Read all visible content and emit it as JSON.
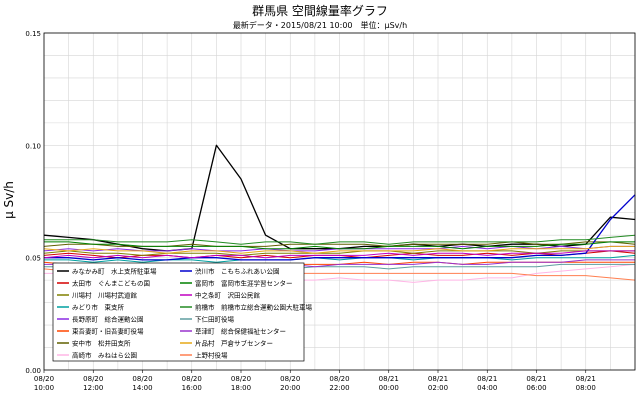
{
  "chart_data": {
    "type": "line",
    "title": "群馬県 空間線量率グラフ",
    "subtitle": "最新データ・2015/08/21 10:00　単位：μSv/h",
    "ylabel": "μ Sv/h",
    "ylim": [
      0.0,
      0.15
    ],
    "yticks": [
      "0.00",
      "0.05",
      "0.10",
      "0.15"
    ],
    "grid": true,
    "legend_position": "lower-left",
    "x_ticks": [
      [
        "08/20",
        "10:00"
      ],
      [
        "08/20",
        "12:00"
      ],
      [
        "08/20",
        "14:00"
      ],
      [
        "08/20",
        "16:00"
      ],
      [
        "08/20",
        "18:00"
      ],
      [
        "08/20",
        "20:00"
      ],
      [
        "08/20",
        "22:00"
      ],
      [
        "08/21",
        "00:00"
      ],
      [
        "08/21",
        "02:00"
      ],
      [
        "08/21",
        "04:00"
      ],
      [
        "08/21",
        "06:00"
      ],
      [
        "08/21",
        "08:00"
      ]
    ],
    "x": [
      "08/20 10:00",
      "08/20 11:00",
      "08/20 12:00",
      "08/20 13:00",
      "08/20 14:00",
      "08/20 15:00",
      "08/20 16:00",
      "08/20 17:00",
      "08/20 18:00",
      "08/20 19:00",
      "08/20 20:00",
      "08/20 21:00",
      "08/20 22:00",
      "08/20 23:00",
      "08/21 00:00",
      "08/21 01:00",
      "08/21 02:00",
      "08/21 03:00",
      "08/21 04:00",
      "08/21 05:00",
      "08/21 06:00",
      "08/21 07:00",
      "08/21 08:00",
      "08/21 09:00",
      "08/21 10:00"
    ],
    "series": [
      {
        "name": "みなかみ町　水上支所駐車場",
        "color": "#000000",
        "values": [
          0.06,
          0.059,
          0.058,
          0.056,
          0.054,
          0.053,
          0.054,
          0.1,
          0.085,
          0.06,
          0.054,
          0.054,
          0.054,
          0.055,
          0.055,
          0.056,
          0.055,
          0.056,
          0.055,
          0.056,
          0.056,
          0.055,
          0.056,
          0.068,
          0.067
        ]
      },
      {
        "name": "太田市　ぐんまこどもの国",
        "color": "#d40000",
        "values": [
          0.051,
          0.052,
          0.051,
          0.05,
          0.051,
          0.051,
          0.05,
          0.051,
          0.05,
          0.051,
          0.05,
          0.051,
          0.051,
          0.05,
          0.051,
          0.052,
          0.051,
          0.051,
          0.052,
          0.051,
          0.052,
          0.051,
          0.052,
          0.053,
          0.052
        ]
      },
      {
        "name": "川場村　川場村武道館",
        "color": "#808000",
        "values": [
          0.052,
          0.053,
          0.052,
          0.052,
          0.051,
          0.052,
          0.052,
          0.052,
          0.051,
          0.052,
          0.052,
          0.052,
          0.052,
          0.053,
          0.053,
          0.052,
          0.053,
          0.053,
          0.053,
          0.053,
          0.052,
          0.053,
          0.053,
          0.053,
          0.053
        ]
      },
      {
        "name": "みどり市　東支所",
        "color": "#00a0a0",
        "values": [
          0.049,
          0.049,
          0.048,
          0.049,
          0.048,
          0.049,
          0.049,
          0.048,
          0.049,
          0.049,
          0.049,
          0.05,
          0.049,
          0.05,
          0.05,
          0.049,
          0.05,
          0.05,
          0.05,
          0.049,
          0.05,
          0.05,
          0.05,
          0.05,
          0.051
        ]
      },
      {
        "name": "長野原町　総合運動公園",
        "color": "#8a2be2",
        "values": [
          0.053,
          0.054,
          0.053,
          0.054,
          0.053,
          0.053,
          0.054,
          0.053,
          0.053,
          0.054,
          0.053,
          0.053,
          0.054,
          0.054,
          0.054,
          0.054,
          0.054,
          0.055,
          0.054,
          0.055,
          0.054,
          0.055,
          0.054,
          0.055,
          0.055
        ]
      },
      {
        "name": "東吾妻町・旧吾妻町役場",
        "color": "#ff4500",
        "values": [
          0.048,
          0.047,
          0.047,
          0.047,
          0.046,
          0.047,
          0.047,
          0.047,
          0.046,
          0.047,
          0.047,
          0.047,
          0.047,
          0.048,
          0.047,
          0.048,
          0.048,
          0.047,
          0.048,
          0.048,
          0.048,
          0.048,
          0.048,
          0.048,
          0.048
        ]
      },
      {
        "name": "安中市　松井田支所",
        "color": "#606000",
        "values": [
          0.055,
          0.056,
          0.056,
          0.055,
          0.055,
          0.055,
          0.056,
          0.055,
          0.055,
          0.055,
          0.056,
          0.056,
          0.056,
          0.056,
          0.055,
          0.056,
          0.056,
          0.056,
          0.056,
          0.057,
          0.056,
          0.056,
          0.057,
          0.057,
          0.056
        ]
      },
      {
        "name": "高崎市　みねはら公園",
        "color": "#ffb6e6",
        "values": [
          0.043,
          0.043,
          0.042,
          0.041,
          0.04,
          0.041,
          0.042,
          0.041,
          0.041,
          0.041,
          0.04,
          0.04,
          0.041,
          0.04,
          0.04,
          0.039,
          0.04,
          0.04,
          0.041,
          0.041,
          0.043,
          0.044,
          0.045,
          0.046,
          0.047
        ]
      },
      {
        "name": "渋川市　こもちふれあい公園",
        "color": "#0000cd",
        "values": [
          0.05,
          0.05,
          0.049,
          0.05,
          0.049,
          0.049,
          0.05,
          0.05,
          0.049,
          0.049,
          0.049,
          0.05,
          0.05,
          0.05,
          0.05,
          0.05,
          0.05,
          0.05,
          0.05,
          0.05,
          0.051,
          0.051,
          0.052,
          0.067,
          0.078
        ]
      },
      {
        "name": "富岡市　富岡市生涯学習センター",
        "color": "#008000",
        "values": [
          0.057,
          0.057,
          0.056,
          0.056,
          0.055,
          0.055,
          0.055,
          0.055,
          0.055,
          0.054,
          0.054,
          0.055,
          0.054,
          0.054,
          0.055,
          0.055,
          0.055,
          0.054,
          0.055,
          0.055,
          0.055,
          0.056,
          0.056,
          0.057,
          0.057
        ]
      },
      {
        "name": "中之条町　沢田公民館",
        "color": "#c000c0",
        "values": [
          0.05,
          0.051,
          0.05,
          0.051,
          0.05,
          0.051,
          0.05,
          0.051,
          0.051,
          0.05,
          0.051,
          0.051,
          0.051,
          0.051,
          0.052,
          0.051,
          0.052,
          0.052,
          0.051,
          0.052,
          0.052,
          0.052,
          0.053,
          0.053,
          0.053
        ]
      },
      {
        "name": "前橋市　前橋市立総合運動公園大駐車場",
        "color": "#228b22",
        "values": [
          0.058,
          0.058,
          0.058,
          0.057,
          0.057,
          0.057,
          0.058,
          0.057,
          0.056,
          0.057,
          0.057,
          0.056,
          0.057,
          0.057,
          0.056,
          0.057,
          0.057,
          0.057,
          0.057,
          0.057,
          0.057,
          0.058,
          0.058,
          0.059,
          0.06
        ]
      },
      {
        "name": "下仁田町役場",
        "color": "#5f9ea0",
        "values": [
          0.046,
          0.046,
          0.045,
          0.046,
          0.045,
          0.046,
          0.045,
          0.045,
          0.046,
          0.045,
          0.045,
          0.046,
          0.046,
          0.046,
          0.045,
          0.046,
          0.046,
          0.046,
          0.046,
          0.046,
          0.046,
          0.047,
          0.047,
          0.047,
          0.047
        ]
      },
      {
        "name": "草津町　総合保健福祉センター",
        "color": "#9932cc",
        "values": [
          0.047,
          0.047,
          0.046,
          0.047,
          0.046,
          0.047,
          0.047,
          0.046,
          0.046,
          0.047,
          0.047,
          0.046,
          0.047,
          0.047,
          0.047,
          0.047,
          0.048,
          0.047,
          0.047,
          0.048,
          0.048,
          0.048,
          0.049,
          0.049,
          0.049
        ]
      },
      {
        "name": "片品村　戸倉サブセンター",
        "color": "#e6a817",
        "values": [
          0.054,
          0.053,
          0.054,
          0.053,
          0.053,
          0.052,
          0.053,
          0.053,
          0.052,
          0.053,
          0.053,
          0.052,
          0.053,
          0.053,
          0.053,
          0.053,
          0.054,
          0.053,
          0.053,
          0.054,
          0.054,
          0.054,
          0.054,
          0.055,
          0.055
        ]
      },
      {
        "name": "上野村役場",
        "color": "#ff7f50",
        "values": [
          0.045,
          0.044,
          0.044,
          0.044,
          0.043,
          0.044,
          0.044,
          0.043,
          0.043,
          0.043,
          0.043,
          0.043,
          0.043,
          0.043,
          0.043,
          0.043,
          0.043,
          0.043,
          0.043,
          0.043,
          0.042,
          0.042,
          0.042,
          0.041,
          0.04
        ]
      }
    ]
  }
}
